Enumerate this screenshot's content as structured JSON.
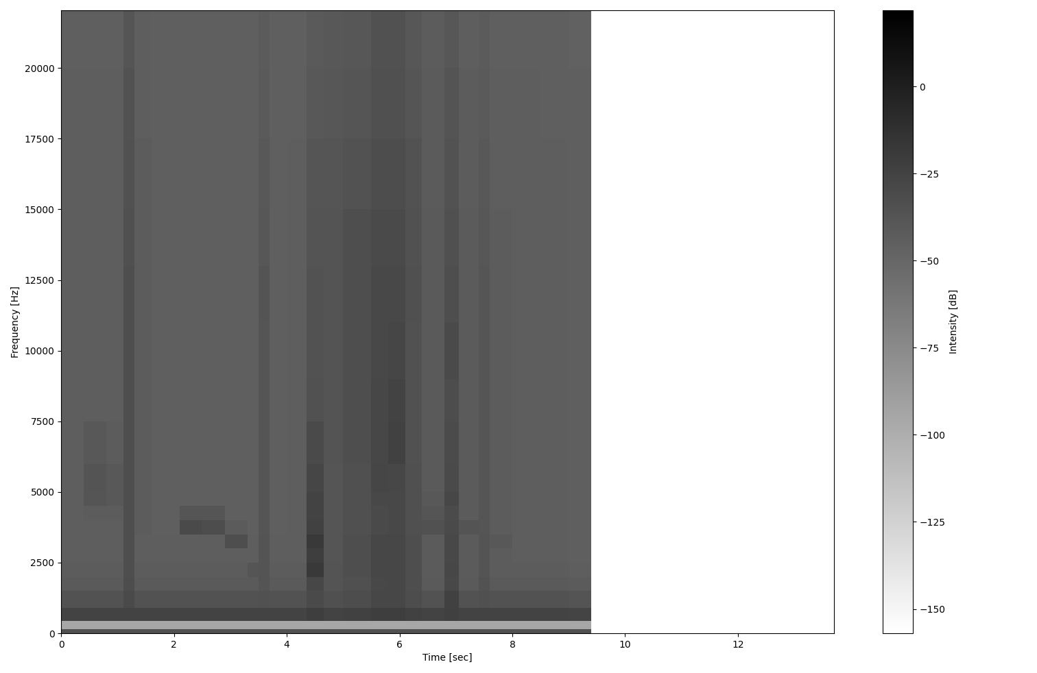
{
  "chart_data": {
    "type": "heatmap",
    "xlabel": "Time [sec]",
    "ylabel": "Frequency [Hz]",
    "colorbar_label": "Intensity [dB]",
    "color": "gray_r",
    "xlim": [
      0,
      13.7
    ],
    "ylim": [
      0,
      22050
    ],
    "xticks": [
      0,
      2,
      4,
      6,
      8,
      10,
      12
    ],
    "yticks": [
      0,
      2500,
      5000,
      7500,
      10000,
      12500,
      15000,
      17500,
      20000
    ],
    "x_edges": [
      0,
      0.4,
      0.8,
      1.1,
      1.3,
      1.6,
      2.1,
      2.5,
      2.9,
      3.3,
      3.5,
      3.7,
      4.0,
      4.35,
      4.65,
      5.0,
      5.5,
      5.8,
      6.1,
      6.4,
      6.8,
      7.05,
      7.4,
      7.6,
      8.0,
      8.5,
      9.0,
      9.4
    ],
    "y_edges": [
      0,
      150,
      450,
      900,
      1500,
      2000,
      2500,
      3000,
      3500,
      4000,
      4500,
      5000,
      6000,
      7500,
      9000,
      11000,
      13000,
      15000,
      17500,
      20000,
      22050
    ],
    "cells": [
      [
        -35,
        -35,
        -35,
        -35,
        -35,
        -35,
        -35,
        -35,
        -35,
        -35,
        -35,
        -35,
        -35,
        -35,
        -35,
        -35,
        -35,
        -35,
        -35,
        -35,
        -35,
        -35,
        -35,
        -35,
        -35,
        -35,
        -35
      ],
      [
        -95,
        -95,
        -95,
        -95,
        -95,
        -95,
        -95,
        -95,
        -95,
        -95,
        -95,
        -95,
        -95,
        -95,
        -95,
        -95,
        -95,
        -95,
        -95,
        -95,
        -95,
        -95,
        -95,
        -95,
        -95,
        -95,
        -95
      ],
      [
        -25,
        -25,
        -25,
        -25,
        -25,
        -25,
        -25,
        -25,
        -25,
        -25,
        -25,
        -25,
        -25,
        -22,
        -25,
        -24,
        -22,
        -22,
        -24,
        -25,
        -23,
        -25,
        -25,
        -25,
        -25,
        -25,
        -26
      ],
      [
        -36,
        -36,
        -36,
        -30,
        -36,
        -36,
        -36,
        -36,
        -36,
        -36,
        -35,
        -36,
        -36,
        -30,
        -34,
        -32,
        -28,
        -28,
        -32,
        -36,
        -24,
        -36,
        -34,
        -36,
        -36,
        -36,
        -37
      ],
      [
        -41,
        -41,
        -41,
        -32,
        -41,
        -41,
        -41,
        -41,
        -41,
        -41,
        -37,
        -41,
        -41,
        -28,
        -37,
        -34,
        -29,
        -28,
        -33,
        -41,
        -29,
        -41,
        -36,
        -41,
        -41,
        -41,
        -42
      ],
      [
        -43,
        -43,
        -43,
        -33,
        -43,
        -43,
        -43,
        -43,
        -43,
        -38,
        -37,
        -43,
        -43,
        -18,
        -37,
        -33,
        -28,
        -28,
        -33,
        -42,
        -28,
        -42,
        -37,
        -43,
        -43,
        -43,
        -44
      ],
      [
        -44,
        -44,
        -44,
        -33,
        -44,
        -44,
        -44,
        -44,
        -44,
        -44,
        -37,
        -44,
        -44,
        -22,
        -38,
        -33,
        -28,
        -28,
        -33,
        -42,
        -29,
        -42,
        -37,
        -43,
        -44,
        -44,
        -45
      ],
      [
        -44,
        -44,
        -44,
        -33,
        -44,
        -44,
        -44,
        -44,
        -33,
        -44,
        -37,
        -44,
        -44,
        -18,
        -38,
        -33,
        -28,
        -28,
        -33,
        -42,
        -29,
        -42,
        -37,
        -40,
        -44,
        -44,
        -45
      ],
      [
        -44,
        -44,
        -44,
        -33,
        -43,
        -45,
        -30,
        -32,
        -42,
        -45,
        -38,
        -45,
        -44,
        -24,
        -38,
        -34,
        -30,
        -29,
        -34,
        -35,
        -30,
        -37,
        -38,
        -43,
        -44,
        -44,
        -45
      ],
      [
        -44,
        -43,
        -43,
        -33,
        -43,
        -45,
        -38,
        -38,
        -45,
        -45,
        -38,
        -45,
        -44,
        -25,
        -38,
        -34,
        -30,
        -29,
        -34,
        -38,
        -31,
        -42,
        -38,
        -43,
        -44,
        -44,
        -45
      ],
      [
        -44,
        -38,
        -40,
        -33,
        -43,
        -45,
        -45,
        -45,
        -45,
        -45,
        -38,
        -45,
        -44,
        -25,
        -38,
        -34,
        -29,
        -29,
        -34,
        -40,
        -28,
        -42,
        -38,
        -43,
        -44,
        -44,
        -45
      ],
      [
        -44,
        -37,
        -40,
        -33,
        -43,
        -45,
        -45,
        -45,
        -45,
        -45,
        -38,
        -45,
        -44,
        -27,
        -38,
        -34,
        -27,
        -28,
        -34,
        -41,
        -30,
        -42,
        -38,
        -43,
        -44,
        -44,
        -45
      ],
      [
        -44,
        -40,
        -43,
        -33,
        -43,
        -45,
        -45,
        -45,
        -45,
        -45,
        -38,
        -45,
        -44,
        -30,
        -37,
        -33,
        -28,
        -24,
        -35,
        -41,
        -31,
        -42,
        -38,
        -43,
        -44,
        -44,
        -45
      ],
      [
        -44,
        -44,
        -44,
        -33,
        -43,
        -45,
        -45,
        -45,
        -45,
        -45,
        -38,
        -45,
        -44,
        -35,
        -37,
        -33,
        -28,
        -25,
        -35,
        -41,
        -32,
        -42,
        -38,
        -43,
        -44,
        -44,
        -45
      ],
      [
        -44,
        -44,
        -44,
        -33,
        -43,
        -45,
        -45,
        -45,
        -45,
        -45,
        -38,
        -45,
        -44,
        -36,
        -37,
        -33,
        -29,
        -27,
        -35,
        -41,
        -30,
        -42,
        -38,
        -43,
        -44,
        -44,
        -45
      ],
      [
        -44,
        -44,
        -44,
        -33,
        -43,
        -45,
        -45,
        -45,
        -45,
        -45,
        -37,
        -45,
        -44,
        -36,
        -37,
        -33,
        -29,
        -29,
        -34,
        -41,
        -33,
        -42,
        -38,
        -43,
        -44,
        -44,
        -45
      ],
      [
        -44,
        -44,
        -44,
        -34,
        -43,
        -45,
        -45,
        -45,
        -45,
        -45,
        -39,
        -45,
        -44,
        -37,
        -37,
        -33,
        -30,
        -30,
        -35,
        -41,
        -34,
        -42,
        -39,
        -43,
        -44,
        -44,
        -45
      ],
      [
        -44,
        -44,
        -44,
        -35,
        -43,
        -45,
        -45,
        -45,
        -45,
        -45,
        -40,
        -45,
        -44,
        -38,
        -38,
        -36,
        -32,
        -32,
        -36,
        -42,
        -36,
        -43,
        -40,
        -44,
        -44,
        -44,
        -45
      ],
      [
        -44,
        -44,
        -44,
        -36,
        -44,
        -45,
        -45,
        -45,
        -45,
        -45,
        -41,
        -45,
        -45,
        -40,
        -39,
        -38,
        -34,
        -34,
        -38,
        -42,
        -37,
        -43,
        -41,
        -44,
        -44,
        -45,
        -45
      ],
      [
        -45,
        -45,
        -45,
        -38,
        -44,
        -45,
        -45,
        -45,
        -45,
        -45,
        -42,
        -45,
        -45,
        -41,
        -40,
        -39,
        -35,
        -35,
        -39,
        -43,
        -39,
        -44,
        -42,
        -45,
        -45,
        -45,
        -46
      ]
    ],
    "colorbar_range": [
      -157,
      22
    ],
    "colorbar_ticks": [
      {
        "value": 0,
        "label": "0"
      },
      {
        "value": -25,
        "label": "−25"
      },
      {
        "value": -50,
        "label": "−50"
      },
      {
        "value": -75,
        "label": "−75"
      },
      {
        "value": -100,
        "label": "−100"
      },
      {
        "value": -125,
        "label": "−125"
      },
      {
        "value": -150,
        "label": "−150"
      }
    ]
  }
}
